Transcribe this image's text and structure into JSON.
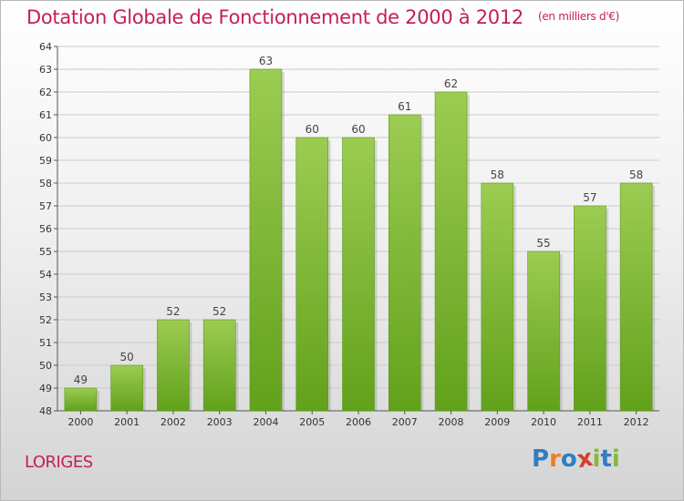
{
  "title": "Dotation Globale de Fonctionnement de 2000 à 2012",
  "unit": "(en milliers d'€)",
  "commune": "LORIGES",
  "logo": {
    "text": "Proxiti",
    "letters": [
      "P",
      "r",
      "o",
      "x",
      "i",
      "t",
      "i"
    ],
    "colors": [
      "#2e7fc3",
      "#e8822a",
      "#2e7fc3",
      "#d43f2e",
      "#8ab83a",
      "#2e7fc3",
      "#8ab83a"
    ]
  },
  "colors": {
    "title": "#c41e5a",
    "bar_top": "#9ccc52",
    "bar_bottom": "#62a11c",
    "grid": "#cccccc"
  },
  "chart_data": {
    "type": "bar",
    "title": "Dotation Globale de Fonctionnement de 2000 à 2012",
    "subtitle": "(en milliers d'€)",
    "categories": [
      "2000",
      "2001",
      "2002",
      "2003",
      "2004",
      "2005",
      "2006",
      "2007",
      "2008",
      "2009",
      "2010",
      "2011",
      "2012"
    ],
    "values": [
      49,
      50,
      52,
      52,
      63,
      60,
      60,
      61,
      62,
      58,
      55,
      57,
      58
    ],
    "data_labels": [
      "49",
      "50",
      "52",
      "52",
      "63",
      "60",
      "60",
      "61",
      "62",
      "58",
      "55",
      "57",
      "58"
    ],
    "ylim": [
      48,
      64
    ],
    "yticks": [
      48,
      49,
      50,
      51,
      52,
      53,
      54,
      55,
      56,
      57,
      58,
      59,
      60,
      61,
      62,
      63,
      64
    ],
    "grid": true,
    "xlabel": "",
    "ylabel": ""
  }
}
